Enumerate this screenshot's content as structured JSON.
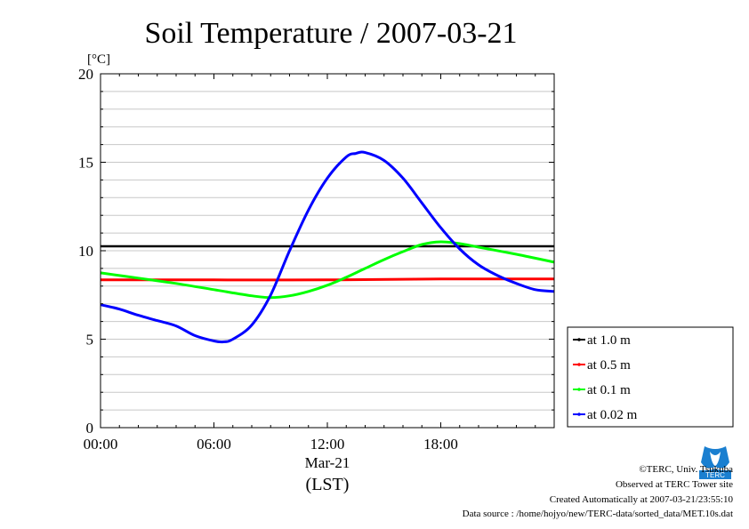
{
  "chart_data": {
    "type": "line",
    "title": "Soil Temperature / 2007-03-21",
    "ylabel": "[°C]",
    "xlabel": "(LST)",
    "x_date_label": "Mar-21",
    "ylim": [
      0,
      20
    ],
    "xlim_hours": [
      0,
      24
    ],
    "y_ticks": [
      "0",
      "5",
      "10",
      "15",
      "20"
    ],
    "x_ticks": [
      {
        "hour": 0,
        "label": "00:00"
      },
      {
        "hour": 6,
        "label": "06:00"
      },
      {
        "hour": 12,
        "label": "12:00"
      },
      {
        "hour": 18,
        "label": "18:00"
      }
    ],
    "grid": true,
    "legend_position": "right",
    "series": [
      {
        "name": "at 1.0 m",
        "color": "#000000",
        "x": [
          0,
          6,
          12,
          18,
          24
        ],
        "y": [
          10.25,
          10.25,
          10.25,
          10.25,
          10.25
        ]
      },
      {
        "name": "at 0.5 m",
        "color": "#ff0000",
        "x": [
          0,
          6,
          12,
          18,
          24
        ],
        "y": [
          8.35,
          8.35,
          8.35,
          8.4,
          8.4
        ]
      },
      {
        "name": "at 0.1 m",
        "color": "#00ff00",
        "x": [
          0,
          2,
          4,
          6,
          8,
          9,
          10,
          11,
          12,
          13,
          14,
          15,
          16,
          17,
          18,
          19,
          20,
          22,
          24
        ],
        "y": [
          8.75,
          8.45,
          8.15,
          7.8,
          7.45,
          7.35,
          7.45,
          7.7,
          8.05,
          8.5,
          9.0,
          9.5,
          9.95,
          10.35,
          10.5,
          10.4,
          10.2,
          9.8,
          9.35
        ]
      },
      {
        "name": "at 0.02 m",
        "color": "#0000ff",
        "x": [
          0,
          1,
          2,
          3,
          4,
          5,
          6,
          6.5,
          7,
          8,
          9,
          10,
          11,
          12,
          13,
          13.5,
          14,
          15,
          16,
          17,
          18,
          19,
          20,
          21,
          22,
          23,
          24
        ],
        "y": [
          6.95,
          6.7,
          6.35,
          6.05,
          5.75,
          5.2,
          4.9,
          4.85,
          5.0,
          5.8,
          7.5,
          10.0,
          12.3,
          14.1,
          15.3,
          15.5,
          15.55,
          15.1,
          14.1,
          12.7,
          11.3,
          10.1,
          9.2,
          8.6,
          8.15,
          7.8,
          7.7
        ]
      }
    ]
  },
  "footer": {
    "copyright": "©TERC, Univ. Tsukuba",
    "site": "Observed at TERC Tower site",
    "created": "Created Automatically at 2007-03-21/23:55:10",
    "source": "Data source : /home/hojyo/new/TERC-data/sorted_data/MET.10s.dat",
    "logo_text": "TERC"
  }
}
